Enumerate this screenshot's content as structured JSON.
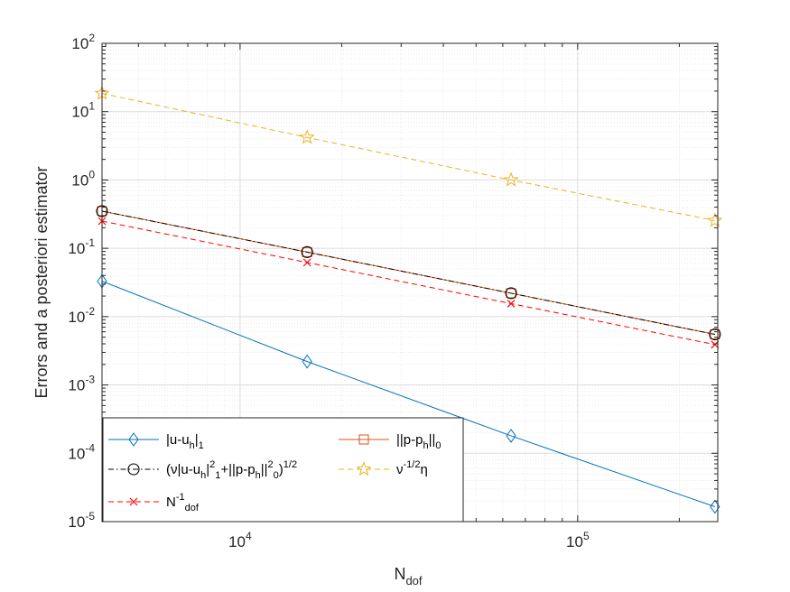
{
  "chart_data": {
    "type": "line",
    "xscale": "log",
    "yscale": "log",
    "xlim": [
      3900,
      260000
    ],
    "ylim": [
      1e-05,
      100
    ],
    "grid": true,
    "minor_grid": true,
    "xlabel": {
      "main": "N",
      "sub": "dof"
    },
    "ylabel": "Errors and a posteriori estimator",
    "x_ticks": [
      {
        "value": 10000,
        "base": "10",
        "exp": "4"
      },
      {
        "value": 100000,
        "base": "10",
        "exp": "5"
      }
    ],
    "y_ticks": [
      {
        "value": 1e-05,
        "base": "10",
        "exp": "-5"
      },
      {
        "value": 0.0001,
        "base": "10",
        "exp": "-4"
      },
      {
        "value": 0.001,
        "base": "10",
        "exp": "-3"
      },
      {
        "value": 0.01,
        "base": "10",
        "exp": "-2"
      },
      {
        "value": 0.1,
        "base": "10",
        "exp": "-1"
      },
      {
        "value": 1,
        "base": "10",
        "exp": "0"
      },
      {
        "value": 10,
        "base": "10",
        "exp": "1"
      },
      {
        "value": 100,
        "base": "10",
        "exp": "2"
      }
    ],
    "x": [
      3900,
      15800,
      63500,
      255000
    ],
    "series": [
      {
        "name": "|u-u_h|_1",
        "color": "#0072BD",
        "dash": "solid",
        "marker": "diamond",
        "values": [
          0.033,
          0.0022,
          0.00018,
          1.65e-05
        ]
      },
      {
        "name": "||p-p_h||_0",
        "color": "#D95319",
        "dash": "solid",
        "marker": "square",
        "values": [
          0.35,
          0.088,
          0.022,
          0.0055
        ]
      },
      {
        "name": "(ν|u-u_h|_1^2+||p-p_h||_0^2)^1/2",
        "color": "#000000",
        "dash": "dashdot",
        "marker": "circle",
        "values": [
          0.35,
          0.088,
          0.022,
          0.0055
        ]
      },
      {
        "name": "ν^-1/2 η",
        "color": "#EDB120",
        "dash": "dashed",
        "marker": "star",
        "values": [
          18.5,
          4.2,
          1.0,
          0.255
        ]
      },
      {
        "name": "N_dof^-1",
        "color": "#FF0000",
        "dash": "dashed",
        "marker": "x",
        "values": [
          0.25,
          0.062,
          0.0155,
          0.0039
        ]
      }
    ],
    "legend": {
      "position": "bottom-left",
      "columns": 2,
      "entries": [
        {
          "series": 0,
          "parts": [
            [
              "t",
              "|u-u"
            ],
            [
              "sub",
              "h"
            ],
            [
              "t",
              "|"
            ],
            [
              "sub",
              "1"
            ]
          ]
        },
        {
          "series": 1,
          "parts": [
            [
              "t",
              "||p-p"
            ],
            [
              "sub",
              "h"
            ],
            [
              "t",
              "||"
            ],
            [
              "sub",
              "0"
            ]
          ]
        },
        {
          "series": 2,
          "parts": [
            [
              "t",
              "("
            ],
            [
              "t",
              "ν"
            ],
            [
              "t",
              "|u-u"
            ],
            [
              "sub",
              "h"
            ],
            [
              "t",
              "|"
            ],
            [
              "sup",
              "2"
            ],
            [
              "sub",
              "1"
            ],
            [
              "t",
              "+||p-p"
            ],
            [
              "sub",
              "h"
            ],
            [
              "t",
              "||"
            ],
            [
              "sup",
              "2"
            ],
            [
              "sub",
              "0"
            ],
            [
              "t",
              ")"
            ],
            [
              "sup",
              "1/2"
            ]
          ]
        },
        {
          "series": 3,
          "parts": [
            [
              "t",
              "ν"
            ],
            [
              "sup",
              "-1/2"
            ],
            [
              "t",
              "η"
            ]
          ]
        },
        {
          "series": 4,
          "parts": [
            [
              "t",
              "N"
            ],
            [
              "sup",
              "-1"
            ],
            [
              "sub",
              "dof"
            ]
          ]
        }
      ]
    }
  }
}
